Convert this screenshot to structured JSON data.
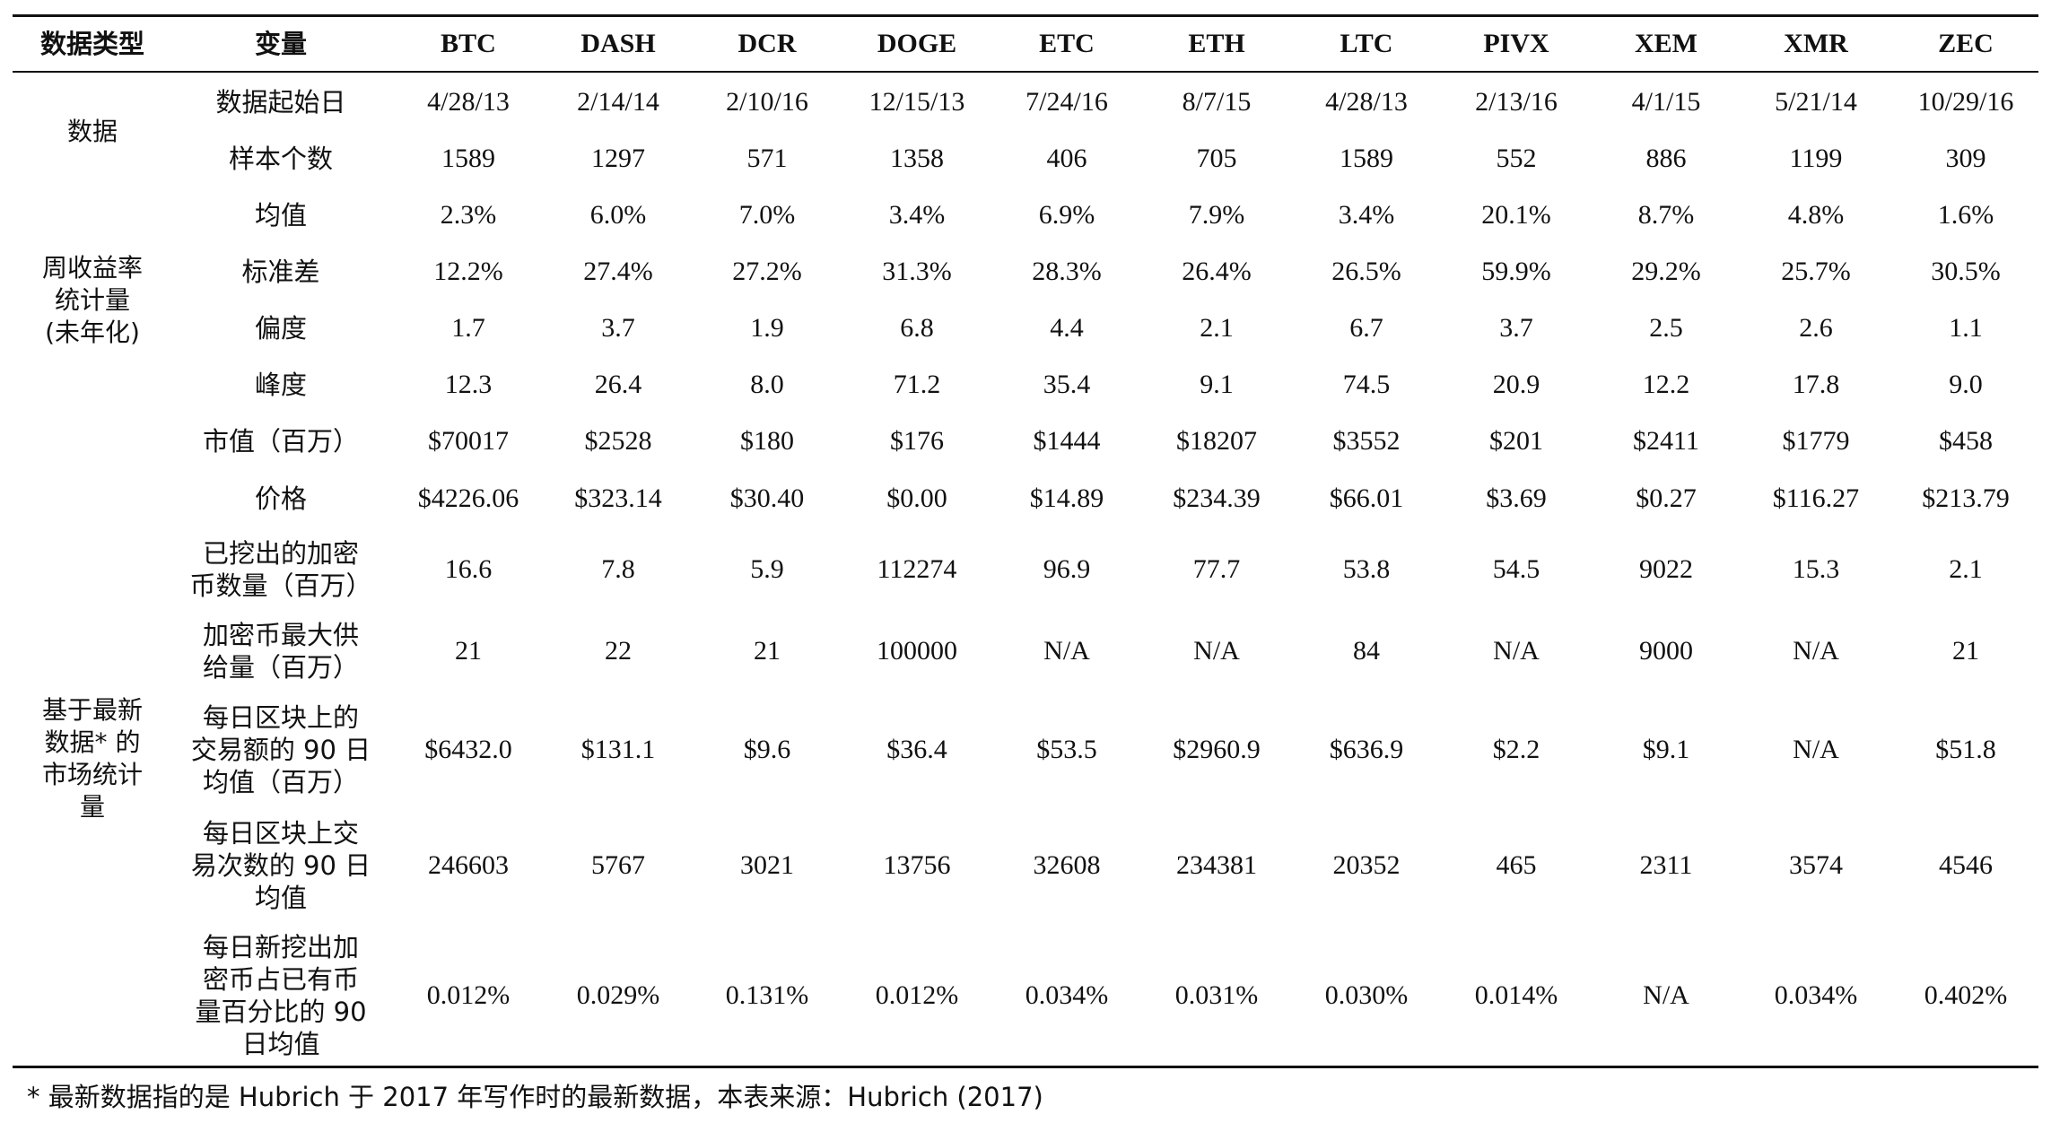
{
  "header": {
    "type_label": "数据类型",
    "var_label": "变量",
    "coins": [
      "BTC",
      "DASH",
      "DCR",
      "DOGE",
      "ETC",
      "ETH",
      "LTC",
      "PIVX",
      "XEM",
      "XMR",
      "ZEC"
    ]
  },
  "groups": [
    {
      "lines": [
        "数据"
      ]
    },
    {
      "lines": [
        "周收益率",
        "统计量",
        "(未年化)"
      ]
    },
    {
      "lines": [
        "基于最新",
        "数据* 的",
        "市场统计",
        "量"
      ]
    }
  ],
  "rows": [
    {
      "label": [
        "数据起始日"
      ],
      "values": [
        "4/28/13",
        "2/14/14",
        "2/10/16",
        "12/15/13",
        "7/24/16",
        "8/7/15",
        "4/28/13",
        "2/13/16",
        "4/1/15",
        "5/21/14",
        "10/29/16"
      ]
    },
    {
      "label": [
        "样本个数"
      ],
      "values": [
        "1589",
        "1297",
        "571",
        "1358",
        "406",
        "705",
        "1589",
        "552",
        "886",
        "1199",
        "309"
      ]
    },
    {
      "label": [
        "均值"
      ],
      "values": [
        "2.3%",
        "6.0%",
        "7.0%",
        "3.4%",
        "6.9%",
        "7.9%",
        "3.4%",
        "20.1%",
        "8.7%",
        "4.8%",
        "1.6%"
      ]
    },
    {
      "label": [
        "标准差"
      ],
      "values": [
        "12.2%",
        "27.4%",
        "27.2%",
        "31.3%",
        "28.3%",
        "26.4%",
        "26.5%",
        "59.9%",
        "29.2%",
        "25.7%",
        "30.5%"
      ]
    },
    {
      "label": [
        "偏度"
      ],
      "values": [
        "1.7",
        "3.7",
        "1.9",
        "6.8",
        "4.4",
        "2.1",
        "6.7",
        "3.7",
        "2.5",
        "2.6",
        "1.1"
      ]
    },
    {
      "label": [
        "峰度"
      ],
      "values": [
        "12.3",
        "26.4",
        "8.0",
        "71.2",
        "35.4",
        "9.1",
        "74.5",
        "20.9",
        "12.2",
        "17.8",
        "9.0"
      ]
    },
    {
      "label": [
        "市值（百万）"
      ],
      "values": [
        "$70017",
        "$2528",
        "$180",
        "$176",
        "$1444",
        "$18207",
        "$3552",
        "$201",
        "$2411",
        "$1779",
        "$458"
      ]
    },
    {
      "label": [
        "价格"
      ],
      "values": [
        "$4226.06",
        "$323.14",
        "$30.40",
        "$0.00",
        "$14.89",
        "$234.39",
        "$66.01",
        "$3.69",
        "$0.27",
        "$116.27",
        "$213.79"
      ]
    },
    {
      "label": [
        "已挖出的加密",
        "币数量（百万）"
      ],
      "values": [
        "16.6",
        "7.8",
        "5.9",
        "112274",
        "96.9",
        "77.7",
        "53.8",
        "54.5",
        "9022",
        "15.3",
        "2.1"
      ]
    },
    {
      "label": [
        "加密币最大供",
        "给量（百万）"
      ],
      "values": [
        "21",
        "22",
        "21",
        "100000",
        "N/A",
        "N/A",
        "84",
        "N/A",
        "9000",
        "N/A",
        "21"
      ]
    },
    {
      "label": [
        "每日区块上的",
        "交易额的 90 日",
        "均值（百万）"
      ],
      "values": [
        "$6432.0",
        "$131.1",
        "$9.6",
        "$36.4",
        "$53.5",
        "$2960.9",
        "$636.9",
        "$2.2",
        "$9.1",
        "N/A",
        "$51.8"
      ]
    },
    {
      "label": [
        "每日区块上交",
        "易次数的 90 日",
        "均值"
      ],
      "values": [
        "246603",
        "5767",
        "3021",
        "13756",
        "32608",
        "234381",
        "20352",
        "465",
        "2311",
        "3574",
        "4546"
      ]
    },
    {
      "label": [
        "每日新挖出加",
        "密币占已有币",
        "量百分比的 90",
        "日均值"
      ],
      "values": [
        "0.012%",
        "0.029%",
        "0.131%",
        "0.012%",
        "0.034%",
        "0.031%",
        "0.030%",
        "0.014%",
        "N/A",
        "0.034%",
        "0.402%"
      ]
    }
  ],
  "footnote": "* 最新数据指的是 Hubrich 于 2017 年写作时的最新数据，本表来源：Hubrich (2017)"
}
